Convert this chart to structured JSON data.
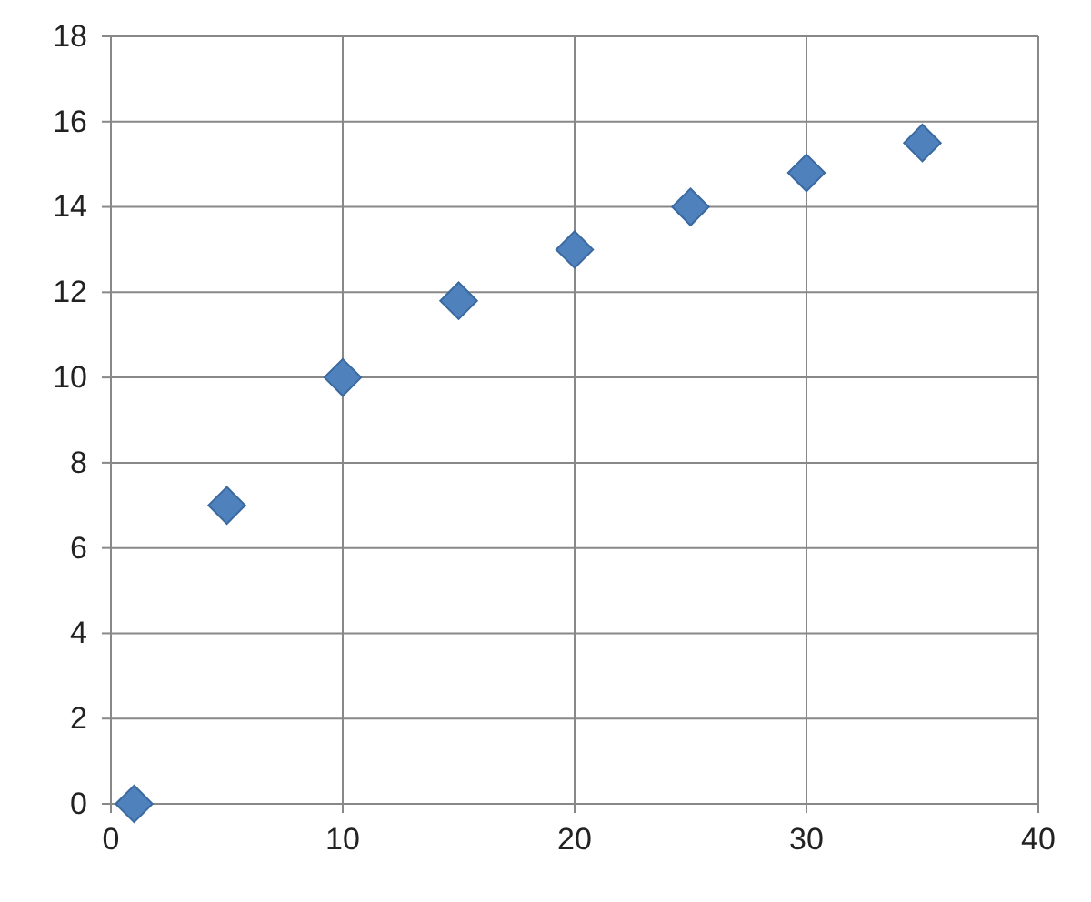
{
  "chart_data": {
    "type": "scatter",
    "x": [
      1,
      5,
      10,
      15,
      20,
      25,
      30,
      35
    ],
    "series": [
      {
        "color": "#4f81bd",
        "values": [
          0,
          7,
          10,
          11.8,
          13,
          14,
          14.8,
          15.5
        ]
      }
    ],
    "xlim": [
      0,
      40
    ],
    "xticks": [
      0,
      10,
      20,
      30,
      40
    ],
    "ylim": [
      0,
      18
    ],
    "yticks": [
      0,
      2,
      4,
      6,
      8,
      10,
      12,
      14,
      16,
      18
    ],
    "grid": true,
    "marker": "diamond"
  }
}
